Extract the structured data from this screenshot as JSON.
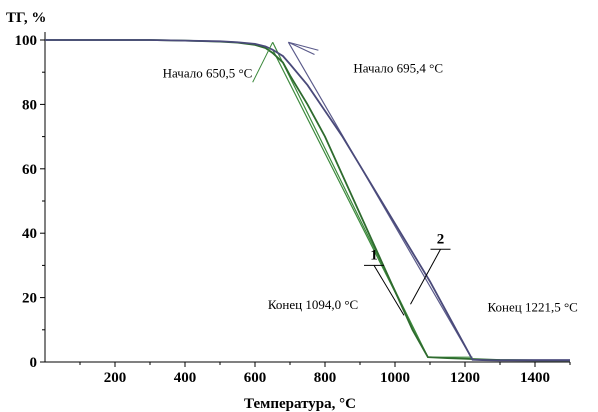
{
  "chart_data": {
    "type": "line",
    "title": "",
    "ylabel": "ТГ, %",
    "xlabel": "Температура, °C",
    "xlim": [
      0,
      1500
    ],
    "ylim": [
      0,
      100
    ],
    "x_ticks": [
      200,
      400,
      600,
      800,
      1000,
      1200,
      1400
    ],
    "y_ticks": [
      0,
      20,
      40,
      60,
      80,
      100
    ],
    "grid": false,
    "colors": {
      "series_1": "#2e6b2e",
      "series_2": "#4a4a7a",
      "tangent_1": "#3d8a3d",
      "tangent_2": "#5a5a8a",
      "axis": "#000000"
    },
    "series": [
      {
        "name": "1",
        "x": [
          0,
          100,
          200,
          300,
          400,
          500,
          550,
          600,
          630,
          650,
          680,
          700,
          750,
          800,
          850,
          900,
          950,
          1000,
          1050,
          1094,
          1150,
          1200,
          1250,
          1300,
          1400,
          1500
        ],
        "y": [
          100,
          100,
          100,
          100,
          99.8,
          99.5,
          99.2,
          98.5,
          97.5,
          96,
          93,
          89,
          80,
          70,
          58,
          46,
          34,
          22,
          10,
          1.5,
          1.2,
          1.0,
          0.8,
          0.6,
          0.5,
          0.5
        ]
      },
      {
        "name": "2",
        "x": [
          0,
          100,
          200,
          300,
          400,
          500,
          550,
          600,
          630,
          650,
          680,
          700,
          750,
          800,
          850,
          900,
          950,
          1000,
          1050,
          1100,
          1150,
          1200,
          1221.5,
          1250,
          1300,
          1400,
          1500
        ],
        "y": [
          100,
          100,
          100,
          100,
          99.8,
          99.6,
          99.3,
          98.8,
          98,
          97,
          95,
          92.5,
          86,
          78,
          70,
          61,
          52,
          43,
          34,
          25,
          15,
          5,
          0.7,
          0.6,
          0.5,
          0.5,
          0.5
        ]
      }
    ],
    "tangents": [
      {
        "x": [
          650.5,
          1094.0
        ],
        "y": [
          99.3,
          1.5
        ]
      },
      {
        "x": [
          650.5,
          1094.0
        ],
        "y": [
          97,
          1.5
        ]
      },
      {
        "x": [
          695.4,
          1221.5
        ],
        "y": [
          99.3,
          0.7
        ]
      },
      {
        "x": [
          695.4,
          770
        ],
        "y": [
          99.3,
          95.5
        ]
      }
    ],
    "annotations": [
      {
        "id": "start1",
        "text": "Начало 650,5 °С",
        "x": 650.5,
        "y": 99.3
      },
      {
        "id": "start2",
        "text": "Начало 695,4 °С",
        "x": 695.4,
        "y": 99.3
      },
      {
        "id": "end1",
        "text": "Конец 1094,0 °С",
        "x": 1094.0,
        "y": 1.5
      },
      {
        "id": "end2",
        "text": "Конец 1221,5 °С",
        "x": 1221.5,
        "y": 0.7
      }
    ],
    "curve_labels": [
      {
        "text": "1",
        "x": 940,
        "y": 30
      },
      {
        "text": "2",
        "x": 1130,
        "y": 35
      }
    ]
  }
}
